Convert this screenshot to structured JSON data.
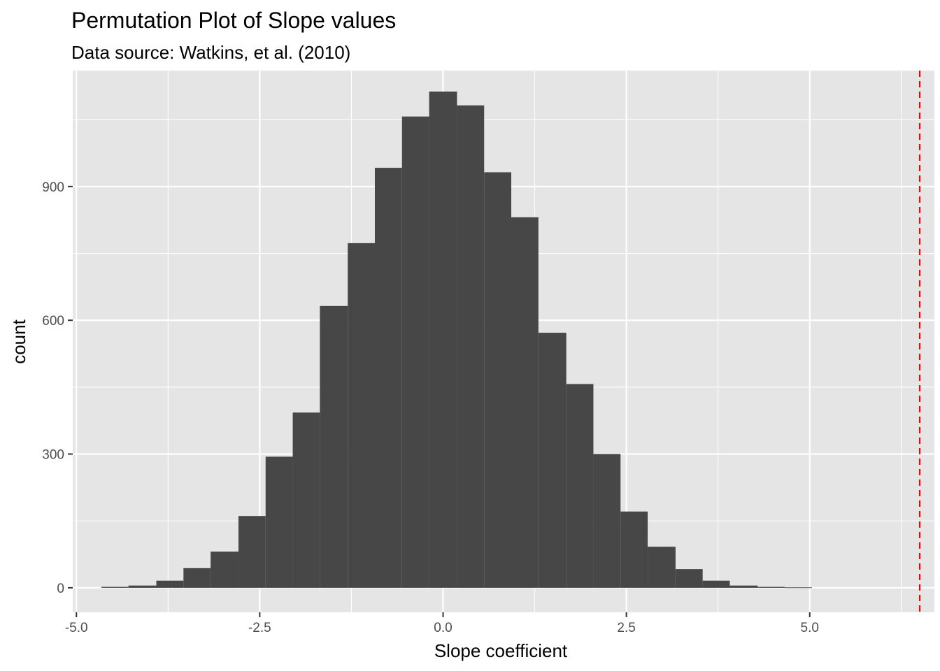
{
  "chart_data": {
    "type": "bar",
    "subtype": "histogram",
    "title": "Permutation Plot of Slope values",
    "subtitle": "Data source: Watkins, et al. (2010)",
    "xlabel": "Slope coefficient",
    "ylabel": "count",
    "xlim": [
      -5.05,
      6.7
    ],
    "ylim": [
      -55,
      1160
    ],
    "x_ticks": [
      -5.0,
      -2.5,
      0.0,
      2.5,
      5.0
    ],
    "x_tick_labels": [
      "-5.0",
      "-2.5",
      "0.0",
      "2.5",
      "5.0"
    ],
    "y_ticks": [
      0,
      300,
      600,
      900
    ],
    "y_tick_labels": [
      "0",
      "300",
      "600",
      "900"
    ],
    "grid": true,
    "bin_width": 0.373,
    "bins": [
      {
        "x0": -4.66,
        "x1": -4.29,
        "count": 2
      },
      {
        "x0": -4.29,
        "x1": -3.91,
        "count": 5
      },
      {
        "x0": -3.91,
        "x1": -3.54,
        "count": 16
      },
      {
        "x0": -3.54,
        "x1": -3.17,
        "count": 44
      },
      {
        "x0": -3.17,
        "x1": -2.79,
        "count": 81
      },
      {
        "x0": -2.79,
        "x1": -2.42,
        "count": 161
      },
      {
        "x0": -2.42,
        "x1": -2.05,
        "count": 294
      },
      {
        "x0": -2.05,
        "x1": -1.68,
        "count": 393
      },
      {
        "x0": -1.68,
        "x1": -1.3,
        "count": 632
      },
      {
        "x0": -1.3,
        "x1": -0.93,
        "count": 773
      },
      {
        "x0": -0.93,
        "x1": -0.56,
        "count": 942
      },
      {
        "x0": -0.56,
        "x1": -0.19,
        "count": 1057
      },
      {
        "x0": -0.19,
        "x1": 0.19,
        "count": 1113
      },
      {
        "x0": 0.19,
        "x1": 0.56,
        "count": 1082
      },
      {
        "x0": 0.56,
        "x1": 0.93,
        "count": 932
      },
      {
        "x0": 0.93,
        "x1": 1.3,
        "count": 831
      },
      {
        "x0": 1.3,
        "x1": 1.68,
        "count": 572
      },
      {
        "x0": 1.68,
        "x1": 2.05,
        "count": 457
      },
      {
        "x0": 2.05,
        "x1": 2.42,
        "count": 300
      },
      {
        "x0": 2.42,
        "x1": 2.79,
        "count": 171
      },
      {
        "x0": 2.79,
        "x1": 3.17,
        "count": 92
      },
      {
        "x0": 3.17,
        "x1": 3.54,
        "count": 42
      },
      {
        "x0": 3.54,
        "x1": 3.91,
        "count": 16
      },
      {
        "x0": 3.91,
        "x1": 4.29,
        "count": 5
      },
      {
        "x0": 4.29,
        "x1": 4.66,
        "count": 2
      },
      {
        "x0": 4.66,
        "x1": 5.03,
        "count": 1
      }
    ],
    "reference_line": {
      "x": 6.5,
      "style": "dashed",
      "color": "#ff0000"
    },
    "colors": {
      "bar": "#474747",
      "panel": "#e5e5e5",
      "grid": "#ffffff",
      "tick": "#4d4d4d"
    }
  }
}
